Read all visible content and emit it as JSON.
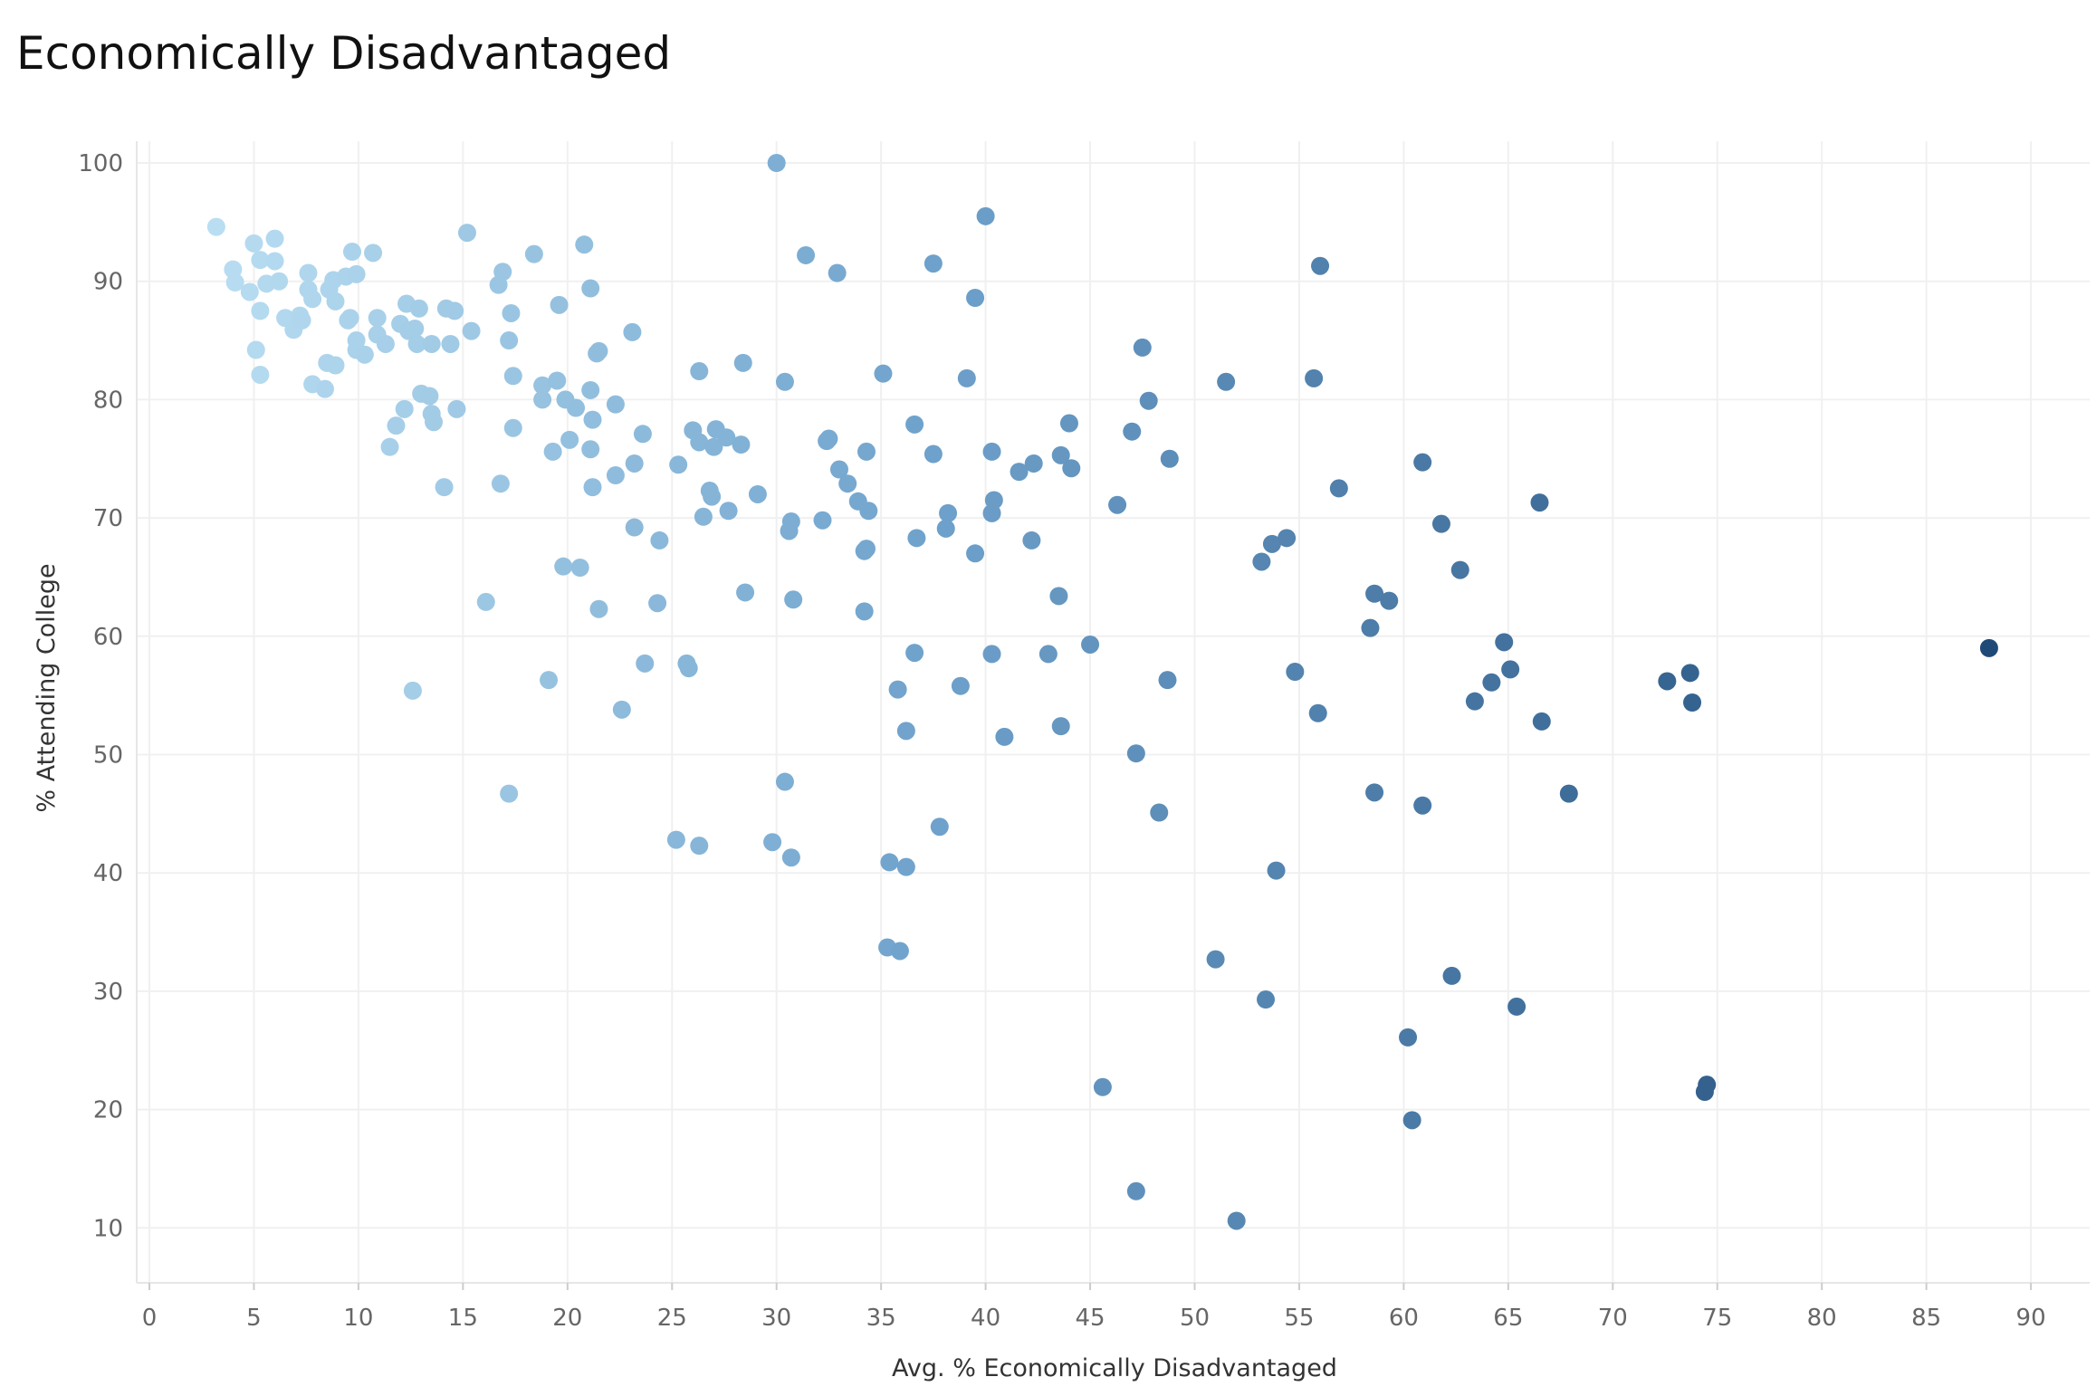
{
  "chart_data": {
    "type": "scatter",
    "title": "Economically Disadvantaged",
    "xlabel": "Avg. % Economically Disadvantaged",
    "ylabel": "% Attending College",
    "xlim": [
      -0.5,
      92.5
    ],
    "ylim": [
      5,
      105.5
    ],
    "xticks": [
      0,
      5,
      10,
      15,
      20,
      25,
      30,
      35,
      40,
      45,
      50,
      55,
      60,
      65,
      70,
      75,
      80,
      85,
      90
    ],
    "yticks": [
      10,
      20,
      30,
      40,
      50,
      60,
      70,
      80,
      90,
      100
    ],
    "grid": true,
    "color_scale": {
      "low": "#b9def2",
      "mid": "#6fa2cc",
      "high": "#1f4a78"
    },
    "points": [
      [
        3.2,
        94.6
      ],
      [
        4.0,
        91.0
      ],
      [
        4.1,
        89.9
      ],
      [
        4.8,
        89.1
      ],
      [
        5.0,
        93.2
      ],
      [
        5.1,
        84.2
      ],
      [
        5.3,
        82.1
      ],
      [
        5.3,
        91.8
      ],
      [
        5.3,
        87.5
      ],
      [
        5.6,
        89.8
      ],
      [
        6.0,
        93.6
      ],
      [
        6.0,
        91.7
      ],
      [
        6.2,
        90.0
      ],
      [
        6.5,
        86.9
      ],
      [
        6.9,
        85.9
      ],
      [
        7.2,
        87.1
      ],
      [
        7.3,
        86.7
      ],
      [
        7.6,
        90.7
      ],
      [
        7.6,
        89.3
      ],
      [
        7.8,
        88.5
      ],
      [
        7.8,
        81.3
      ],
      [
        8.4,
        80.9
      ],
      [
        8.5,
        83.1
      ],
      [
        8.6,
        89.3
      ],
      [
        8.8,
        90.1
      ],
      [
        8.9,
        88.3
      ],
      [
        8.9,
        82.9
      ],
      [
        9.4,
        90.4
      ],
      [
        9.5,
        86.7
      ],
      [
        9.6,
        86.9
      ],
      [
        9.7,
        92.5
      ],
      [
        9.9,
        90.6
      ],
      [
        9.9,
        85.0
      ],
      [
        9.9,
        84.2
      ],
      [
        10.3,
        83.8
      ],
      [
        10.7,
        92.4
      ],
      [
        10.9,
        86.9
      ],
      [
        10.9,
        85.5
      ],
      [
        11.3,
        84.7
      ],
      [
        11.5,
        76.0
      ],
      [
        11.8,
        77.8
      ],
      [
        12.0,
        86.4
      ],
      [
        12.2,
        79.2
      ],
      [
        12.3,
        88.1
      ],
      [
        12.4,
        85.8
      ],
      [
        12.6,
        55.4
      ],
      [
        12.7,
        86.0
      ],
      [
        12.8,
        84.7
      ],
      [
        12.9,
        87.7
      ],
      [
        13.0,
        80.5
      ],
      [
        13.4,
        80.3
      ],
      [
        13.5,
        84.7
      ],
      [
        13.5,
        78.8
      ],
      [
        13.6,
        78.1
      ],
      [
        14.1,
        72.6
      ],
      [
        14.2,
        87.7
      ],
      [
        14.4,
        84.7
      ],
      [
        14.6,
        87.5
      ],
      [
        14.7,
        79.2
      ],
      [
        15.2,
        94.1
      ],
      [
        15.4,
        85.8
      ],
      [
        16.1,
        62.9
      ],
      [
        16.7,
        89.7
      ],
      [
        16.9,
        90.8
      ],
      [
        16.8,
        72.9
      ],
      [
        17.2,
        85.0
      ],
      [
        17.2,
        46.7
      ],
      [
        17.3,
        87.3
      ],
      [
        17.4,
        82.0
      ],
      [
        17.4,
        77.6
      ],
      [
        18.4,
        92.3
      ],
      [
        18.8,
        81.2
      ],
      [
        18.8,
        80.0
      ],
      [
        19.1,
        56.3
      ],
      [
        19.3,
        75.6
      ],
      [
        19.5,
        81.6
      ],
      [
        19.6,
        88.0
      ],
      [
        19.8,
        65.9
      ],
      [
        19.9,
        80.0
      ],
      [
        20.1,
        76.6
      ],
      [
        20.4,
        79.3
      ],
      [
        20.6,
        65.8
      ],
      [
        20.8,
        93.1
      ],
      [
        21.1,
        89.4
      ],
      [
        21.1,
        80.8
      ],
      [
        21.2,
        78.3
      ],
      [
        21.1,
        75.8
      ],
      [
        21.2,
        72.6
      ],
      [
        21.4,
        83.9
      ],
      [
        21.5,
        62.3
      ],
      [
        21.5,
        84.1
      ],
      [
        22.3,
        73.6
      ],
      [
        22.3,
        79.6
      ],
      [
        22.6,
        53.8
      ],
      [
        23.1,
        85.7
      ],
      [
        23.2,
        69.2
      ],
      [
        23.2,
        74.6
      ],
      [
        23.6,
        77.1
      ],
      [
        23.7,
        57.7
      ],
      [
        24.4,
        68.1
      ],
      [
        24.3,
        62.8
      ],
      [
        25.2,
        42.8
      ],
      [
        25.3,
        74.5
      ],
      [
        26.0,
        77.4
      ],
      [
        25.8,
        57.3
      ],
      [
        25.7,
        57.7
      ],
      [
        26.3,
        76.4
      ],
      [
        26.3,
        82.4
      ],
      [
        26.3,
        42.3
      ],
      [
        26.5,
        70.1
      ],
      [
        26.8,
        72.3
      ],
      [
        26.9,
        71.8
      ],
      [
        27.0,
        76.0
      ],
      [
        27.1,
        77.5
      ],
      [
        27.6,
        76.8
      ],
      [
        27.7,
        70.6
      ],
      [
        28.3,
        76.2
      ],
      [
        28.4,
        83.1
      ],
      [
        28.5,
        63.7
      ],
      [
        29.1,
        72.0
      ],
      [
        29.8,
        42.6
      ],
      [
        30.0,
        100.0
      ],
      [
        30.4,
        81.5
      ],
      [
        30.4,
        47.7
      ],
      [
        30.6,
        68.9
      ],
      [
        30.7,
        69.7
      ],
      [
        30.7,
        41.3
      ],
      [
        30.8,
        63.1
      ],
      [
        31.4,
        92.2
      ],
      [
        32.2,
        69.8
      ],
      [
        32.4,
        76.5
      ],
      [
        32.5,
        76.7
      ],
      [
        32.9,
        90.7
      ],
      [
        33.0,
        74.1
      ],
      [
        33.4,
        72.9
      ],
      [
        33.9,
        71.4
      ],
      [
        34.2,
        67.2
      ],
      [
        34.2,
        62.1
      ],
      [
        34.3,
        75.6
      ],
      [
        34.3,
        67.4
      ],
      [
        34.4,
        70.6
      ],
      [
        35.1,
        82.2
      ],
      [
        35.3,
        33.7
      ],
      [
        35.4,
        40.9
      ],
      [
        35.8,
        55.5
      ],
      [
        35.9,
        33.4
      ],
      [
        36.2,
        52.0
      ],
      [
        36.2,
        40.5
      ],
      [
        36.6,
        77.9
      ],
      [
        36.6,
        58.6
      ],
      [
        36.7,
        68.3
      ],
      [
        37.5,
        91.5
      ],
      [
        37.5,
        75.4
      ],
      [
        37.8,
        43.9
      ],
      [
        38.1,
        69.1
      ],
      [
        38.2,
        70.4
      ],
      [
        38.8,
        55.8
      ],
      [
        39.1,
        81.8
      ],
      [
        39.5,
        88.6
      ],
      [
        39.5,
        67.0
      ],
      [
        40.0,
        95.5
      ],
      [
        40.3,
        58.5
      ],
      [
        40.3,
        75.6
      ],
      [
        40.3,
        70.4
      ],
      [
        40.4,
        71.5
      ],
      [
        40.9,
        51.5
      ],
      [
        41.6,
        73.9
      ],
      [
        42.3,
        74.6
      ],
      [
        42.2,
        68.1
      ],
      [
        43.0,
        58.5
      ],
      [
        43.5,
        63.4
      ],
      [
        43.6,
        75.3
      ],
      [
        43.6,
        52.4
      ],
      [
        44.0,
        78.0
      ],
      [
        44.1,
        74.2
      ],
      [
        45.0,
        59.3
      ],
      [
        45.6,
        21.9
      ],
      [
        46.3,
        71.1
      ],
      [
        47.0,
        77.3
      ],
      [
        47.2,
        50.1
      ],
      [
        47.2,
        13.1
      ],
      [
        47.5,
        84.4
      ],
      [
        47.8,
        79.9
      ],
      [
        48.3,
        45.1
      ],
      [
        48.7,
        56.3
      ],
      [
        48.8,
        75.0
      ],
      [
        51.0,
        32.7
      ],
      [
        51.5,
        81.5
      ],
      [
        52.0,
        10.6
      ],
      [
        53.2,
        66.3
      ],
      [
        53.4,
        29.3
      ],
      [
        53.7,
        67.8
      ],
      [
        53.9,
        40.2
      ],
      [
        54.4,
        68.3
      ],
      [
        54.8,
        57.0
      ],
      [
        55.7,
        81.8
      ],
      [
        55.9,
        53.5
      ],
      [
        56.0,
        91.3
      ],
      [
        56.9,
        72.5
      ],
      [
        58.4,
        60.7
      ],
      [
        58.6,
        63.6
      ],
      [
        58.6,
        46.8
      ],
      [
        59.3,
        63.0
      ],
      [
        60.2,
        26.1
      ],
      [
        60.4,
        19.1
      ],
      [
        60.9,
        74.7
      ],
      [
        60.9,
        45.7
      ],
      [
        61.8,
        69.5
      ],
      [
        62.3,
        31.3
      ],
      [
        62.7,
        65.6
      ],
      [
        63.4,
        54.5
      ],
      [
        64.2,
        56.1
      ],
      [
        64.8,
        59.5
      ],
      [
        65.1,
        57.2
      ],
      [
        65.4,
        28.7
      ],
      [
        66.5,
        71.3
      ],
      [
        66.6,
        52.8
      ],
      [
        67.9,
        46.7
      ],
      [
        72.6,
        56.2
      ],
      [
        73.7,
        56.9
      ],
      [
        73.8,
        54.4
      ],
      [
        74.4,
        21.5
      ],
      [
        74.5,
        22.1
      ],
      [
        88.0,
        59.0
      ]
    ]
  }
}
